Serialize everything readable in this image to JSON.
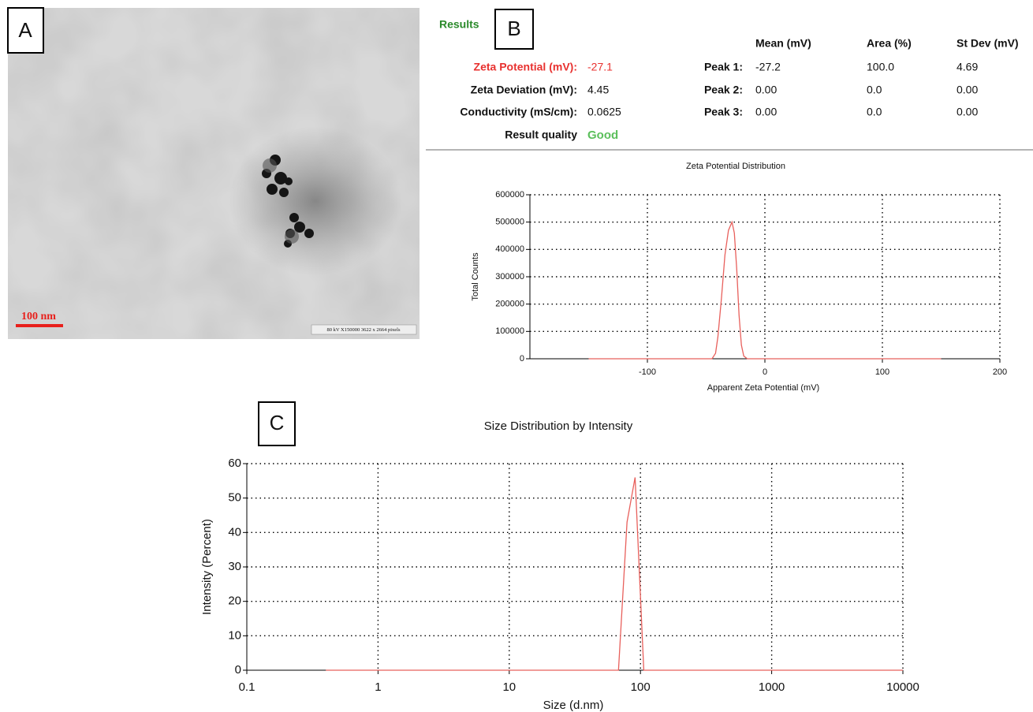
{
  "panels": {
    "a": "A",
    "b": "B",
    "c": "C"
  },
  "tem": {
    "scale_bar": "100 nm",
    "info": "80 kV X150000 3622 x 2664 pixels"
  },
  "results": {
    "title": "Results",
    "summary": [
      [
        "Zeta Potential (mV):",
        "-27.1"
      ],
      [
        "Zeta Deviation (mV):",
        "4.45"
      ],
      [
        "Conductivity (mS/cm):",
        "0.0625"
      ],
      [
        "Result quality",
        "Good"
      ]
    ],
    "peak_header": [
      "Mean (mV)",
      "Area (%)",
      "St Dev (mV)"
    ],
    "peaks": [
      [
        "Peak 1:",
        "-27.2",
        "100.0",
        "4.69"
      ],
      [
        "Peak 2:",
        "0.00",
        "0.0",
        "0.00"
      ],
      [
        "Peak 3:",
        "0.00",
        "0.0",
        "0.00"
      ]
    ]
  },
  "chart_data": [
    {
      "type": "line",
      "title": "Zeta Potential Distribution",
      "xlabel": "Apparent Zeta Potential (mV)",
      "ylabel": "Total Counts",
      "x": [
        -150,
        -100,
        -50,
        -45,
        -42,
        -40,
        -37,
        -34,
        -31,
        -28,
        -26,
        -24,
        -22,
        -20,
        -18,
        -15,
        -10,
        0,
        50,
        100,
        150
      ],
      "values": [
        0,
        0,
        0,
        0,
        20000,
        80000,
        220000,
        380000,
        470000,
        500000,
        460000,
        330000,
        160000,
        50000,
        10000,
        0,
        0,
        0,
        0,
        0,
        0
      ],
      "color": "#e8605c",
      "xlim": [
        -200,
        200
      ],
      "xticks": [
        -100,
        0,
        100,
        200
      ],
      "ylim": [
        0,
        600000
      ],
      "yticks": [
        0,
        100000,
        200000,
        300000,
        400000,
        500000,
        600000
      ],
      "grid": true
    },
    {
      "type": "line",
      "title": "Size Distribution by Intensity",
      "xlabel": "Size (d.nm)",
      "ylabel": "Intensity (Percent)",
      "x": [
        0.4,
        1,
        10,
        68,
        79,
        91,
        106,
        1000,
        10000
      ],
      "values": [
        0,
        0,
        0,
        0,
        43,
        56,
        0,
        0,
        0
      ],
      "color": "#e8605c",
      "xscale": "log",
      "xlim": [
        0.1,
        10000
      ],
      "xticks": [
        0.1,
        1,
        10,
        100,
        1000,
        10000
      ],
      "ylim": [
        0,
        60
      ],
      "yticks": [
        0,
        10,
        20,
        30,
        40,
        50,
        60
      ],
      "grid": true
    }
  ]
}
